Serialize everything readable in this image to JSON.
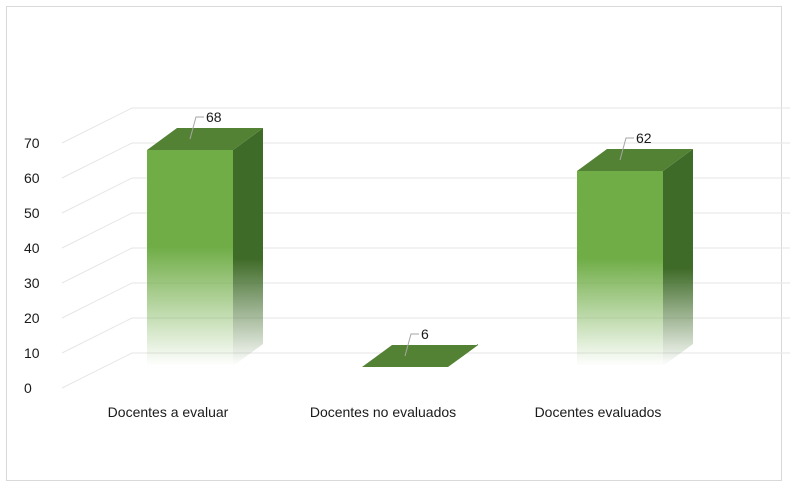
{
  "chart_data": {
    "type": "bar",
    "style": "3d-column",
    "categories": [
      "Docentes a evaluar",
      "Docentes no evaluados",
      "Docentes evaluados"
    ],
    "values": [
      68,
      6,
      62
    ],
    "data_labels": [
      "68",
      "6",
      "62"
    ],
    "ylim": [
      0,
      70
    ],
    "yticks": [
      0,
      10,
      20,
      30,
      40,
      50,
      60,
      70
    ],
    "ytick_labels": [
      "0",
      "10",
      "20",
      "30",
      "40",
      "50",
      "60",
      "70"
    ],
    "grid": true,
    "legend": "none",
    "colors": {
      "front": "#70ad47",
      "top": "#548235",
      "side": "#3f6b28",
      "gridline": "#e6e6e6",
      "leader": "#a6a6a6"
    }
  }
}
